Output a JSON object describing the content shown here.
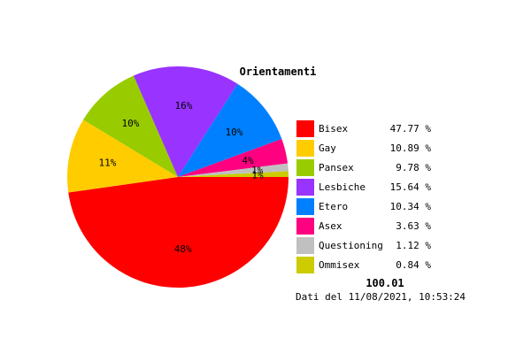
{
  "chart_data": {
    "type": "pie",
    "title": "Orientamenti",
    "slices": [
      {
        "label": "Bisex",
        "value": 47.77,
        "value_text": "47.77 %",
        "slice_label": "48%",
        "color": "#ff0000"
      },
      {
        "label": "Gay",
        "value": 10.89,
        "value_text": "10.89 %",
        "slice_label": "11%",
        "color": "#ffcc00"
      },
      {
        "label": "Pansex",
        "value": 9.78,
        "value_text": "9.78 %",
        "slice_label": "10%",
        "color": "#99cc00"
      },
      {
        "label": "Lesbiche",
        "value": 15.64,
        "value_text": "15.64 %",
        "slice_label": "16%",
        "color": "#9933ff"
      },
      {
        "label": "Etero",
        "value": 10.34,
        "value_text": "10.34 %",
        "slice_label": "10%",
        "color": "#0080ff"
      },
      {
        "label": "Asex",
        "value": 3.63,
        "value_text": "3.63 %",
        "slice_label": "4%",
        "color": "#ff0080"
      },
      {
        "label": "Questioning",
        "value": 1.12,
        "value_text": "1.12 %",
        "slice_label": "1%",
        "color": "#c0c0c0"
      },
      {
        "label": "Ommisex",
        "value": 0.84,
        "value_text": "0.84 %",
        "slice_label": "1%",
        "color": "#cccc00"
      }
    ],
    "total": "100.01",
    "footnote": "Dati del 11/08/2021, 10:53:24",
    "legend_position": "right"
  }
}
